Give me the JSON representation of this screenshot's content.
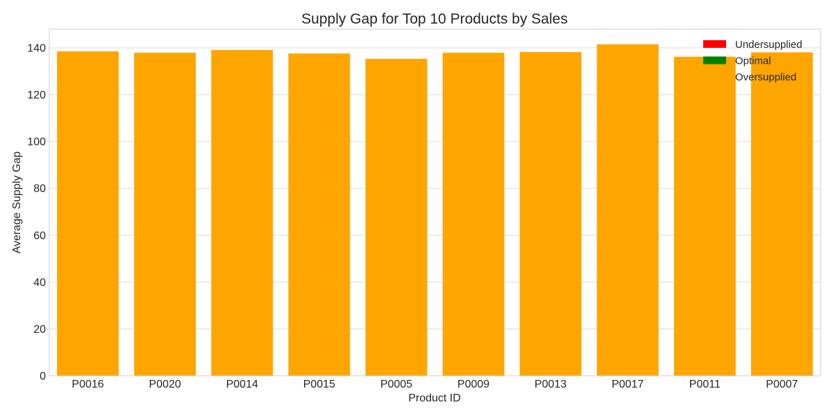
{
  "chart_data": {
    "type": "bar",
    "title": "Supply Gap for Top 10 Products by Sales",
    "xlabel": "Product ID",
    "ylabel": "Average Supply Gap",
    "categories": [
      "P0016",
      "P0020",
      "P0014",
      "P0015",
      "P0005",
      "P0009",
      "P0013",
      "P0017",
      "P0011",
      "P0007"
    ],
    "values": [
      138.5,
      137.9,
      139.1,
      137.6,
      135.3,
      137.9,
      138.2,
      141.5,
      136.2,
      138.1
    ],
    "bar_color": "#FFA500",
    "ylim": [
      0,
      148
    ],
    "yticks": [
      0,
      20,
      40,
      60,
      80,
      100,
      120,
      140
    ],
    "grid": true,
    "legend": {
      "placement": "top-right",
      "entries": [
        {
          "label": "Undersupplied",
          "color": "#FF0000"
        },
        {
          "label": "Optimal",
          "color": "#008000"
        },
        {
          "label": "Oversupplied",
          "color": "#FFA500"
        }
      ]
    }
  }
}
